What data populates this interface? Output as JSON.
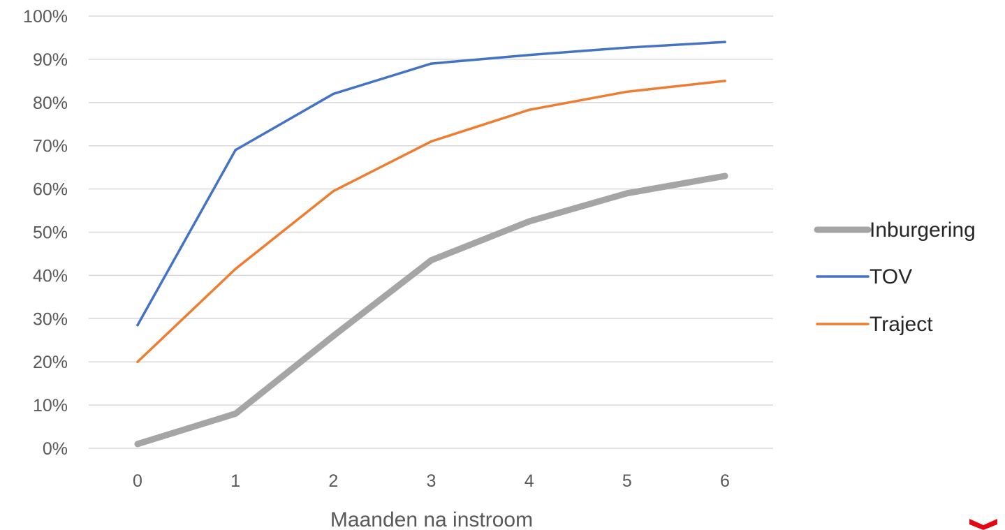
{
  "chart_data": {
    "type": "line",
    "title": "",
    "xlabel": "Maanden na instroom",
    "ylabel": "",
    "categories": [
      "0",
      "1",
      "2",
      "3",
      "4",
      "5",
      "6"
    ],
    "ylim": [
      0,
      100
    ],
    "yticks": [
      "0%",
      "10%",
      "20%",
      "30%",
      "40%",
      "50%",
      "60%",
      "70%",
      "80%",
      "90%",
      "100%"
    ],
    "grid": "horizontal",
    "legend_position": "right",
    "series": [
      {
        "name": "Inburgering",
        "color": "#a5a5a5",
        "line_style": "thick",
        "values": [
          1,
          8,
          26,
          43.5,
          52.5,
          59,
          63
        ]
      },
      {
        "name": "TOV",
        "color": "#4472c4",
        "line_style": "thin",
        "values": [
          28.5,
          69,
          82,
          89,
          91,
          92.7,
          94
        ]
      },
      {
        "name": "Traject",
        "color": "#ed7d31",
        "line_style": "thin",
        "values": [
          20,
          41.5,
          59.5,
          71,
          78.3,
          82.5,
          85
        ]
      }
    ]
  },
  "logo": {
    "name": "red-chevron-mark",
    "color": "#e30613"
  }
}
